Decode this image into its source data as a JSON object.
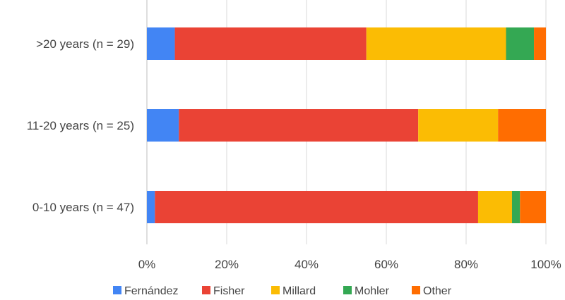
{
  "chart_data": {
    "type": "bar",
    "orientation": "horizontal",
    "stacked": true,
    "title": "",
    "xlabel": "",
    "ylabel": "",
    "categories": [
      ">20 years (n = 29)",
      "11-20 years (n = 25)",
      "0-10 years (n = 47)"
    ],
    "xlim": [
      0,
      100
    ],
    "x_ticks": [
      "0%",
      "20%",
      "40%",
      "60%",
      "80%",
      "100%"
    ],
    "grid": true,
    "legend_position": "bottom",
    "series": [
      {
        "name": "Fernández",
        "color": "#4285F4",
        "values": [
          7,
          8,
          2
        ]
      },
      {
        "name": "Fisher",
        "color": "#EA4335",
        "values": [
          48,
          60,
          81
        ]
      },
      {
        "name": "Millard",
        "color": "#FBBC04",
        "values": [
          35,
          20,
          8.5
        ]
      },
      {
        "name": "Mohler",
        "color": "#34A853",
        "values": [
          7,
          0,
          2
        ]
      },
      {
        "name": "Other",
        "color": "#FF6D01",
        "values": [
          3,
          12,
          6.5
        ]
      }
    ]
  }
}
